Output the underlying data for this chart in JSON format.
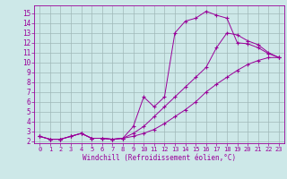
{
  "xlabel": "Windchill (Refroidissement éolien,°C)",
  "bg_color": "#cde8e8",
  "grid_color": "#a0b8b8",
  "line_color": "#990099",
  "xlim": [
    -0.5,
    23.5
  ],
  "ylim": [
    1.8,
    15.8
  ],
  "xticks": [
    0,
    1,
    2,
    3,
    4,
    5,
    6,
    7,
    8,
    9,
    10,
    11,
    12,
    13,
    14,
    15,
    16,
    17,
    18,
    19,
    20,
    21,
    22,
    23
  ],
  "yticks": [
    2,
    3,
    4,
    5,
    6,
    7,
    8,
    9,
    10,
    11,
    12,
    13,
    14,
    15
  ],
  "line1_x": [
    0,
    1,
    2,
    3,
    4,
    5,
    6,
    7,
    8,
    9,
    10,
    11,
    12,
    13,
    14,
    15,
    16,
    17,
    18,
    19,
    20,
    21,
    22,
    23
  ],
  "line1_y": [
    2.5,
    2.2,
    2.2,
    2.5,
    2.8,
    2.3,
    2.3,
    2.2,
    2.3,
    3.5,
    6.5,
    5.5,
    6.5,
    13.0,
    14.2,
    14.5,
    15.2,
    14.8,
    14.5,
    12.0,
    11.9,
    11.5,
    10.9,
    10.5
  ],
  "line2_x": [
    0,
    1,
    2,
    3,
    4,
    5,
    6,
    7,
    8,
    9,
    10,
    11,
    12,
    13,
    14,
    15,
    16,
    17,
    18,
    19,
    20,
    21,
    22,
    23
  ],
  "line2_y": [
    2.5,
    2.2,
    2.2,
    2.5,
    2.8,
    2.3,
    2.3,
    2.2,
    2.3,
    2.5,
    2.8,
    3.2,
    3.8,
    4.5,
    5.2,
    6.0,
    7.0,
    7.8,
    8.5,
    9.2,
    9.8,
    10.2,
    10.5,
    10.5
  ],
  "line3_x": [
    0,
    1,
    2,
    3,
    4,
    5,
    6,
    7,
    8,
    9,
    10,
    11,
    12,
    13,
    14,
    15,
    16,
    17,
    18,
    19,
    20,
    21,
    22,
    23
  ],
  "line3_y": [
    2.5,
    2.2,
    2.2,
    2.5,
    2.8,
    2.3,
    2.3,
    2.2,
    2.3,
    2.8,
    3.5,
    4.5,
    5.5,
    6.5,
    7.5,
    8.5,
    9.5,
    11.5,
    13.0,
    12.8,
    12.2,
    11.8,
    11.0,
    10.5
  ]
}
